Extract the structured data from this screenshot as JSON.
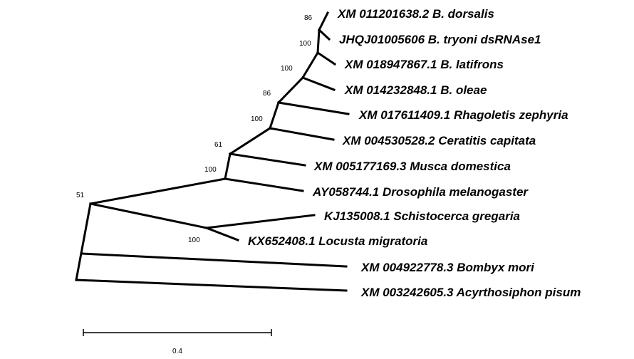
{
  "tree": {
    "taxa": [
      "XM 011201638.2 B. dorsalis",
      "JHQJ01005606 B. tryoni dsRNAse1",
      "XM 018947867.1 B. latifrons",
      "XM 014232848.1 B. oleae",
      "XM 017611409.1 Rhagoletis zephyria",
      "XM 004530528.2 Ceratitis capitata",
      "XM 005177169.3 Musca domestica",
      "AY058744.1 Drosophila melanogaster",
      "KJ135008.1 Schistocerca gregaria",
      "KX652408.1 Locusta migratoria",
      "XM 004922778.3 Bombyx mori",
      "XM 003242605.3 Acyrthosiphon pisum"
    ],
    "bootstrap": [
      "86",
      "100",
      "100",
      "86",
      "100",
      "61",
      "100",
      "51",
      "100"
    ],
    "scale_bar": {
      "value": "0.4"
    }
  }
}
